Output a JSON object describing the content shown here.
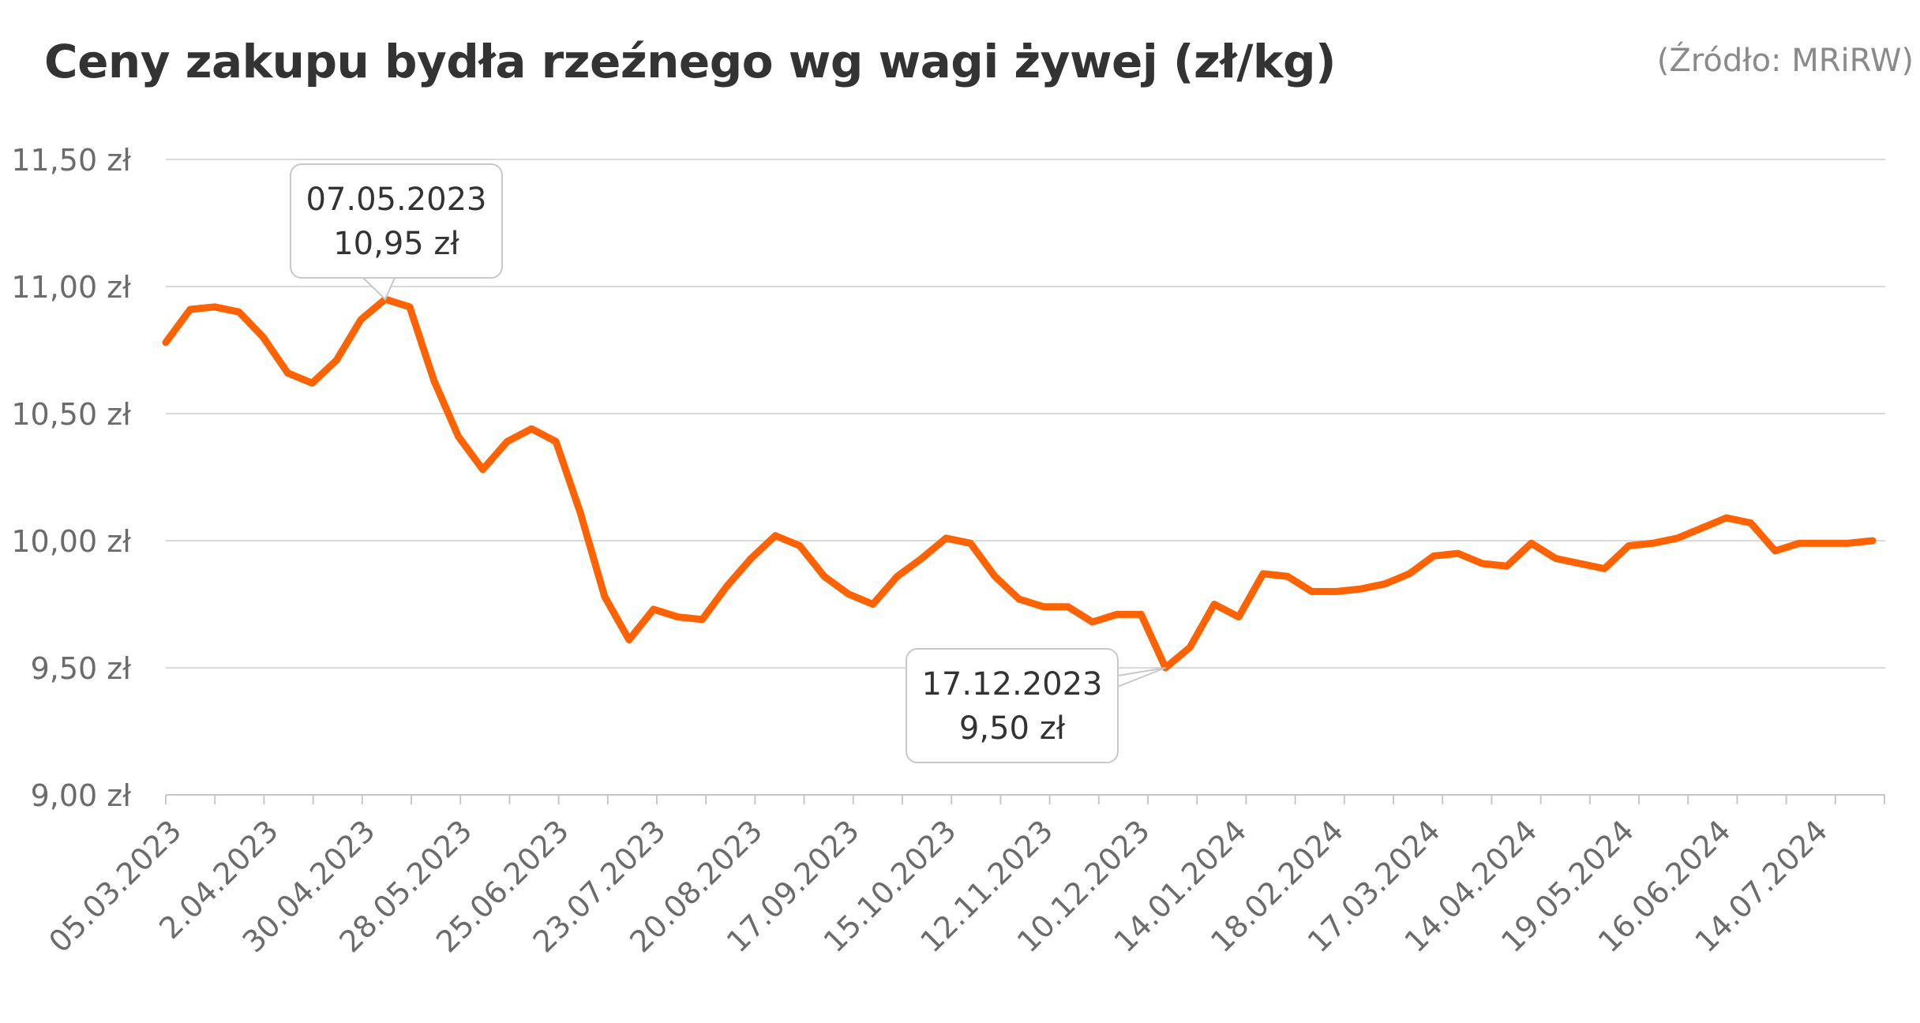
{
  "title": "Ceny zakupu bydła rzeźnego wg wagi żywej (zł/kg)",
  "source": "(Źródło: MRiRW)",
  "colors": {
    "line": "#ff6200",
    "grid": "#d9d9d9",
    "axis_text": "#6b6b6b",
    "title": "#333333",
    "callout_border": "#c8c8c8"
  },
  "chart_data": {
    "type": "line",
    "title": "Ceny zakupu bydła rzeźnego wg wagi żywej (zł/kg)",
    "ylim": [
      9.0,
      11.5
    ],
    "yticks": [
      9.0,
      9.5,
      10.0,
      10.5,
      11.0,
      11.5
    ],
    "ytick_labels": [
      "9,00 zł",
      "9,50 zł",
      "10,00 zł",
      "10,50 zł",
      "11,00 zł",
      "11,50 zł"
    ],
    "xtick_labels": [
      "05.03.2023",
      "2.04.2023",
      "30.04.2023",
      "28.05.2023",
      "25.06.2023",
      "23.07.2023",
      "20.08.2023",
      "17.09.2023",
      "15.10.2023",
      "12.11.2023",
      "10.12.2023",
      "14.01.2024",
      "18.02.2024",
      "17.03.2024",
      "14.04.2024",
      "19.05.2024",
      "16.06.2024",
      "14.07.2024"
    ],
    "grid": true,
    "series": [
      {
        "values": [
          10.78,
          10.91,
          10.92,
          10.9,
          10.8,
          10.66,
          10.62,
          10.71,
          10.87,
          10.95,
          10.92,
          10.63,
          10.41,
          10.28,
          10.39,
          10.44,
          10.39,
          10.11,
          9.78,
          9.61,
          9.73,
          9.7,
          9.69,
          9.82,
          9.93,
          10.02,
          9.98,
          9.86,
          9.79,
          9.75,
          9.86,
          9.93,
          10.01,
          9.99,
          9.86,
          9.77,
          9.74,
          9.74,
          9.68,
          9.71,
          9.71,
          9.5,
          9.58,
          9.75,
          9.7,
          9.87,
          9.86,
          9.8,
          9.8,
          9.81,
          9.83,
          9.87,
          9.94,
          9.95,
          9.91,
          9.9,
          9.99,
          9.93,
          9.91,
          9.89,
          9.98,
          9.99,
          10.01,
          10.05,
          10.09,
          10.07,
          9.96,
          9.99,
          9.99,
          9.99,
          10.0
        ]
      }
    ],
    "annotations": [
      {
        "date": "07.05.2023",
        "value_label": "10,95 zł",
        "point_index": 9,
        "value": 10.95
      },
      {
        "date": "17.12.2023",
        "value_label": "9,50 zł",
        "point_index": 41,
        "value": 9.5
      }
    ]
  }
}
